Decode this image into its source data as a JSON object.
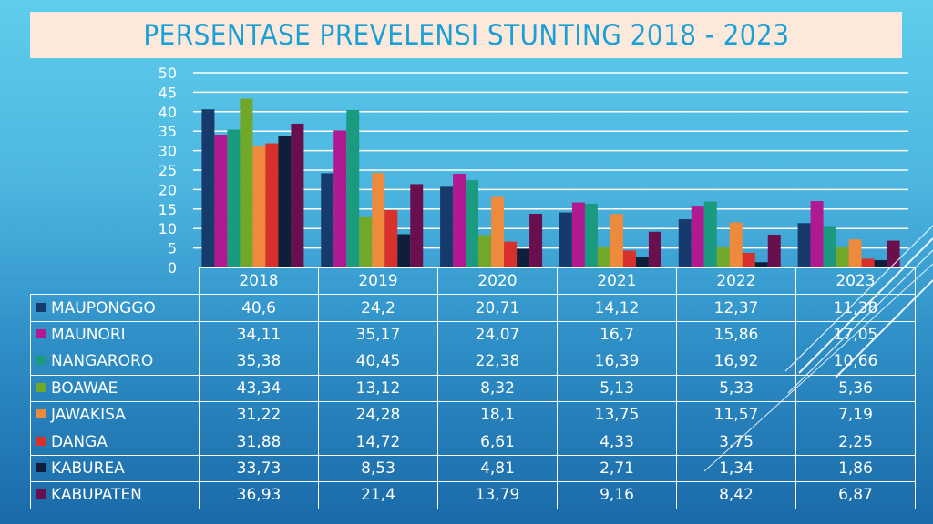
{
  "page": {
    "title": "PERSENTASE PREVELENSI STUNTING 2018 - 2023",
    "colors": {
      "title_text": "#1a9fd6",
      "title_background": "#fde8dc",
      "grid": "#ffffff",
      "text": "#ffffff"
    }
  },
  "chart_data": {
    "type": "bar",
    "title": "PERSENTASE PREVELENSI STUNTING 2018 - 2023",
    "xlabel": "",
    "ylabel": "",
    "ylim": [
      0,
      50
    ],
    "yticks": [
      0,
      5,
      10,
      15,
      20,
      25,
      30,
      35,
      40,
      45,
      50
    ],
    "ytick_labels": [
      "0",
      "5",
      "10",
      "15",
      "20",
      "25",
      "30",
      "35",
      "40",
      "45",
      "50"
    ],
    "grid": true,
    "legend": "data-table-left",
    "categories": [
      "2018",
      "2019",
      "2020",
      "2021",
      "2022",
      "2023"
    ],
    "series": [
      {
        "name": "MAUPONGGO",
        "color": "#163a6b",
        "values": [
          40.6,
          24.2,
          20.71,
          14.12,
          12.37,
          11.38
        ],
        "labels": [
          "40,6",
          "24,2",
          "20,71",
          "14,12",
          "12,37",
          "11,38"
        ]
      },
      {
        "name": "MAUNORI",
        "color": "#b0198f",
        "values": [
          34.11,
          35.17,
          24.07,
          16.7,
          15.86,
          17.05
        ],
        "labels": [
          "34,11",
          "35,17",
          "24,07",
          "16,7",
          "15,86",
          "17,05"
        ]
      },
      {
        "name": "NANGARORO",
        "color": "#1a9a7e",
        "values": [
          35.38,
          40.45,
          22.38,
          16.39,
          16.92,
          10.66
        ],
        "labels": [
          "35,38",
          "40,45",
          "22,38",
          "16,39",
          "16,92",
          "10,66"
        ]
      },
      {
        "name": "BOAWAE",
        "color": "#72a82a",
        "values": [
          43.34,
          13.12,
          8.32,
          5.13,
          5.33,
          5.36
        ],
        "labels": [
          "43,34",
          "13,12",
          "8,32",
          "5,13",
          "5,33",
          "5,36"
        ]
      },
      {
        "name": "JAWAKISA",
        "color": "#ee8a3c",
        "values": [
          31.22,
          24.28,
          18.1,
          13.75,
          11.57,
          7.19
        ],
        "labels": [
          "31,22",
          "24,28",
          "18,1",
          "13,75",
          "11,57",
          "7,19"
        ]
      },
      {
        "name": "DANGA",
        "color": "#d8302a",
        "values": [
          31.88,
          14.72,
          6.61,
          4.33,
          3.75,
          2.25
        ],
        "labels": [
          "31,88",
          "14,72",
          "6,61",
          "4,33",
          "3,75",
          "2,25"
        ]
      },
      {
        "name": "KABUREA",
        "color": "#0f1f3a",
        "values": [
          33.73,
          8.53,
          4.81,
          2.71,
          1.34,
          1.86
        ],
        "labels": [
          "33,73",
          "8,53",
          "4,81",
          "2,71",
          "1,34",
          "1,86"
        ]
      },
      {
        "name": "KABUPATEN",
        "color": "#6a0f4e",
        "values": [
          36.93,
          21.4,
          13.79,
          9.16,
          8.42,
          6.87
        ],
        "labels": [
          "36,93",
          "21,4",
          "13,79",
          "9,16",
          "8,42",
          "6,87"
        ]
      }
    ]
  }
}
